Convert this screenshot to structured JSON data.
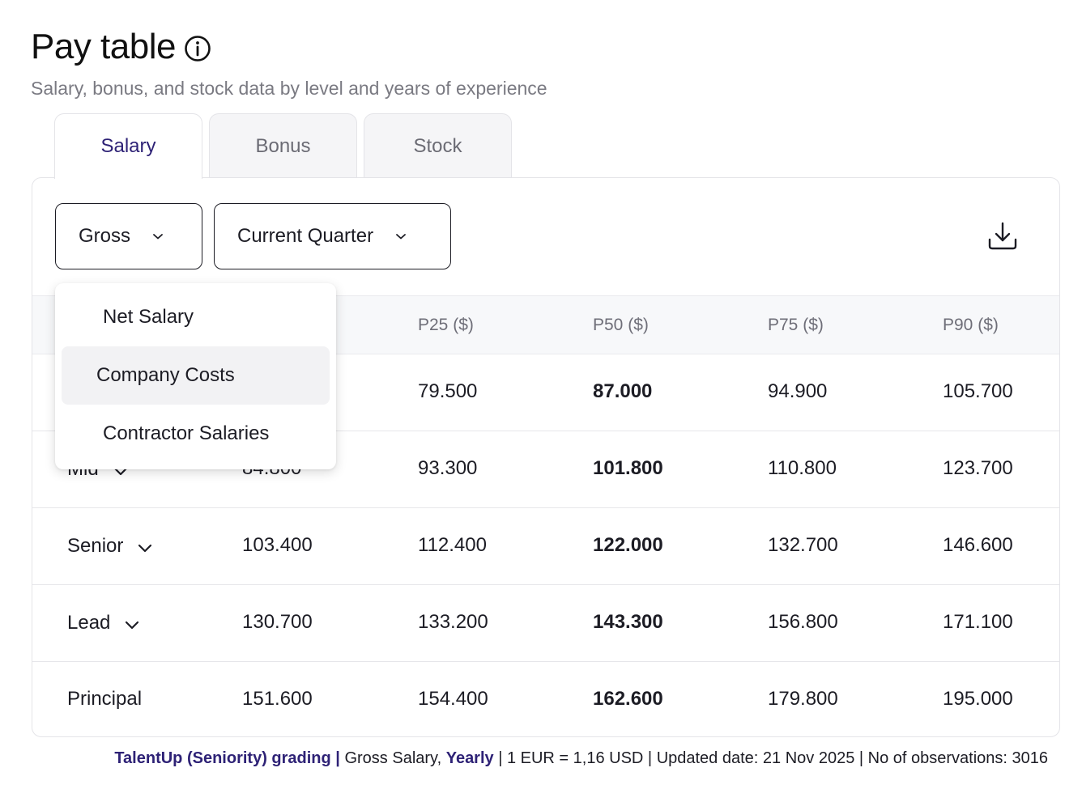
{
  "header": {
    "title": "Pay table",
    "subtitle": "Salary, bonus, and stock data by level and years of experience"
  },
  "tabs": [
    {
      "label": "Salary",
      "active": true
    },
    {
      "label": "Bonus",
      "active": false
    },
    {
      "label": "Stock",
      "active": false
    }
  ],
  "filters": {
    "salary_type": "Gross",
    "period": "Current Quarter"
  },
  "dropdown": {
    "options": [
      "Net Salary",
      "Company Costs",
      "Contractor Salaries"
    ],
    "hovered": "Company Costs"
  },
  "table": {
    "columns": [
      "P25 ($)",
      "P50 ($)",
      "P75 ($)",
      "P90 ($)"
    ],
    "rows": [
      {
        "level": "",
        "p10": "",
        "p25": "79.500",
        "p50": "87.000",
        "p75": "94.900",
        "p90": "105.700"
      },
      {
        "level": "Mid",
        "p10": "84.800",
        "p25": "93.300",
        "p50": "101.800",
        "p75": "110.800",
        "p90": "123.700"
      },
      {
        "level": "Senior",
        "p10": "103.400",
        "p25": "112.400",
        "p50": "122.000",
        "p75": "132.700",
        "p90": "146.600"
      },
      {
        "level": "Lead",
        "p10": "130.700",
        "p25": "133.200",
        "p50": "143.300",
        "p75": "156.800",
        "p90": "171.100"
      },
      {
        "level": "Principal",
        "p10": "151.600",
        "p25": "154.400",
        "p50": "162.600",
        "p75": "179.800",
        "p90": "195.000"
      }
    ]
  },
  "footer": {
    "grading": "TalentUp (Seniority) grading |",
    "salary": "Gross Salary,",
    "frequency": "Yearly",
    "details": "| 1 EUR = 1,16 USD | Updated date: 21 Nov 2025 | No of observations: 3016"
  },
  "colors": {
    "accent": "#2e2276",
    "border": "#e4e4e8",
    "header_bg": "#f7f8fa"
  },
  "icons": {
    "info": "info-circle-icon",
    "download": "download-icon",
    "chevron": "chevron-down-icon"
  }
}
